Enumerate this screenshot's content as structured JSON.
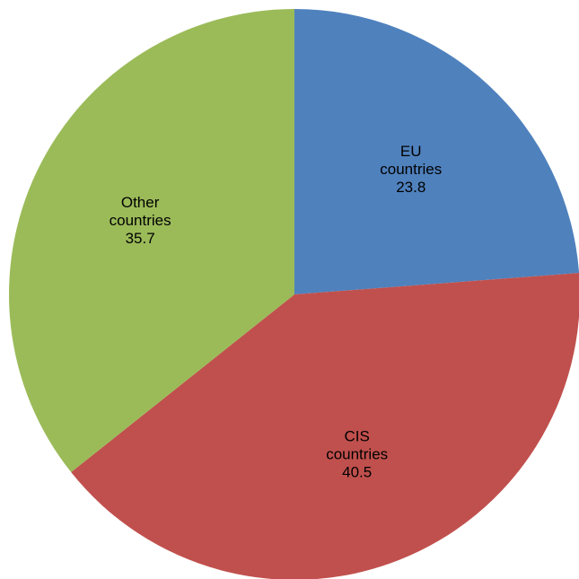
{
  "chart_data": {
    "type": "pie",
    "title": "",
    "start_angle_deg": 0,
    "direction": "clockwise",
    "slices": [
      {
        "name": "EU",
        "name_line2": "countries",
        "value": 23.8,
        "value_label": "23.8",
        "color": "#4F81BD"
      },
      {
        "name": "CIS",
        "name_line2": "countries",
        "value": 40.5,
        "value_label": "40.5",
        "color": "#C0504D"
      },
      {
        "name": "Other",
        "name_line2": "countries",
        "value": 35.7,
        "value_label": "35.7",
        "color": "#9BBB59"
      }
    ],
    "legend": "none",
    "data_labels": "inside"
  }
}
